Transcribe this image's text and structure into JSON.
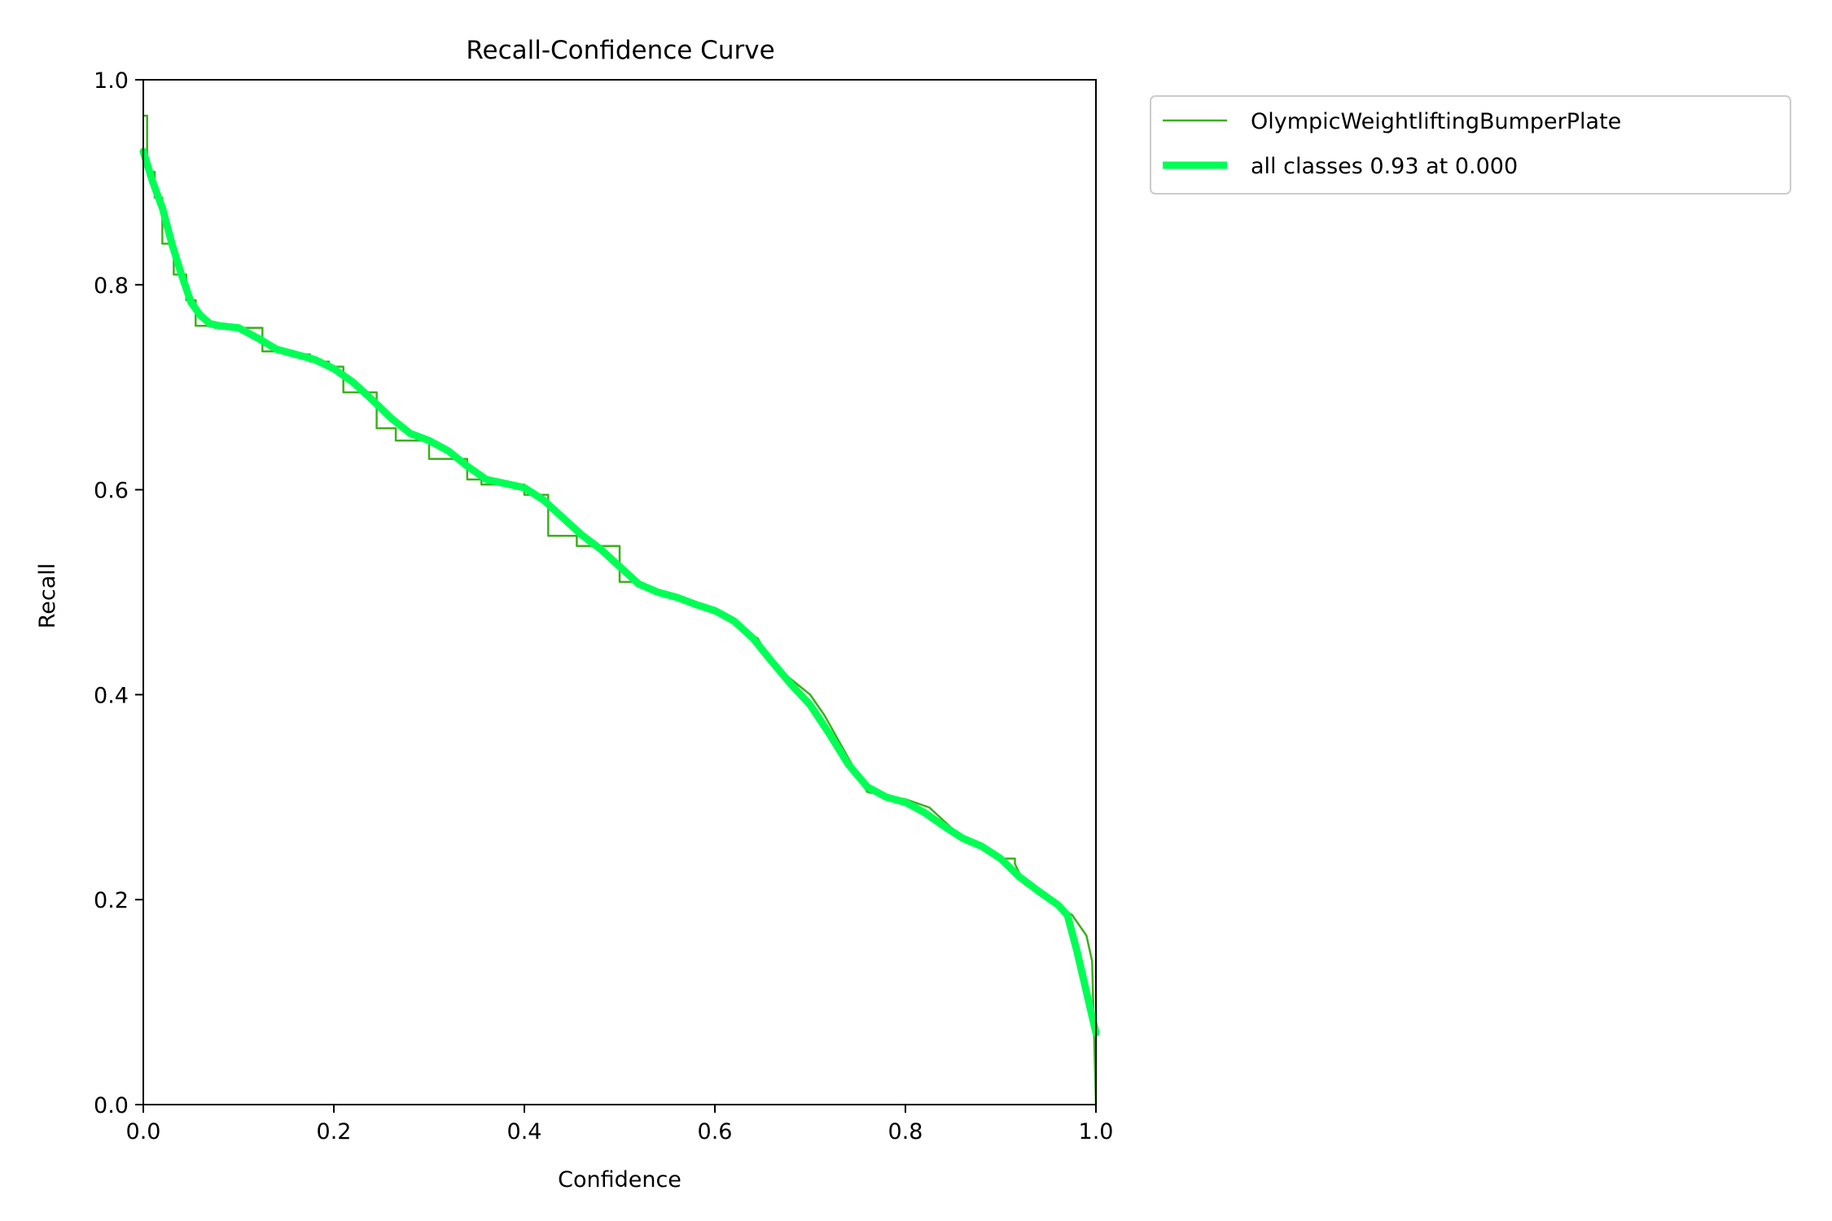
{
  "chart_data": {
    "type": "line",
    "title": "Recall-Confidence Curve",
    "xlabel": "Confidence",
    "ylabel": "Recall",
    "xlim": [
      0,
      1
    ],
    "ylim": [
      0,
      1
    ],
    "xticks": [
      "0.0",
      "0.2",
      "0.4",
      "0.6",
      "0.8",
      "1.0"
    ],
    "yticks": [
      "0.0",
      "0.2",
      "0.4",
      "0.6",
      "0.8",
      "1.0"
    ],
    "grid": false,
    "legend_position": "outside-top-right",
    "series": [
      {
        "name": "OlympicWeightliftingBumperPlate",
        "color": "#3cb01c",
        "style": "thin",
        "x": [
          0.0,
          0.004,
          0.004,
          0.012,
          0.012,
          0.02,
          0.02,
          0.032,
          0.032,
          0.045,
          0.045,
          0.055,
          0.055,
          0.075,
          0.075,
          0.1,
          0.1,
          0.125,
          0.125,
          0.15,
          0.15,
          0.175,
          0.175,
          0.195,
          0.195,
          0.21,
          0.21,
          0.245,
          0.245,
          0.265,
          0.265,
          0.3,
          0.3,
          0.34,
          0.34,
          0.355,
          0.355,
          0.4,
          0.4,
          0.425,
          0.425,
          0.455,
          0.455,
          0.475,
          0.475,
          0.5,
          0.5,
          0.52,
          0.6,
          0.645,
          0.645,
          0.66,
          0.66,
          0.7,
          0.7,
          0.715,
          0.715,
          0.76,
          0.76,
          0.8,
          0.8,
          0.825,
          0.825,
          0.86,
          0.9,
          0.915,
          0.915,
          0.925,
          0.975,
          0.99,
          0.99,
          0.996,
          0.996,
          1.0
        ],
        "y": [
          0.965,
          0.965,
          0.91,
          0.91,
          0.885,
          0.885,
          0.84,
          0.84,
          0.81,
          0.81,
          0.785,
          0.785,
          0.76,
          0.76,
          0.758,
          0.758,
          0.758,
          0.758,
          0.735,
          0.735,
          0.732,
          0.732,
          0.725,
          0.725,
          0.72,
          0.72,
          0.695,
          0.695,
          0.66,
          0.66,
          0.648,
          0.648,
          0.63,
          0.63,
          0.61,
          0.61,
          0.605,
          0.605,
          0.595,
          0.595,
          0.555,
          0.555,
          0.545,
          0.545,
          0.545,
          0.545,
          0.51,
          0.51,
          0.48,
          0.455,
          0.455,
          0.43,
          0.43,
          0.4,
          0.4,
          0.38,
          0.38,
          0.305,
          0.305,
          0.298,
          0.298,
          0.29,
          0.29,
          0.26,
          0.24,
          0.24,
          0.235,
          0.215,
          0.185,
          0.165,
          0.165,
          0.14,
          0.14,
          0.0
        ]
      },
      {
        "name": "all classes 0.93 at 0.000",
        "color": "#00ff55",
        "style": "thick",
        "x": [
          0.0,
          0.005,
          0.01,
          0.02,
          0.03,
          0.04,
          0.05,
          0.06,
          0.07,
          0.08,
          0.1,
          0.12,
          0.14,
          0.16,
          0.18,
          0.2,
          0.22,
          0.24,
          0.26,
          0.28,
          0.3,
          0.32,
          0.34,
          0.36,
          0.38,
          0.4,
          0.42,
          0.44,
          0.46,
          0.48,
          0.5,
          0.52,
          0.54,
          0.56,
          0.58,
          0.6,
          0.62,
          0.64,
          0.66,
          0.68,
          0.7,
          0.72,
          0.74,
          0.76,
          0.78,
          0.8,
          0.82,
          0.84,
          0.86,
          0.88,
          0.9,
          0.92,
          0.94,
          0.96,
          0.97,
          0.98,
          0.99,
          1.0
        ],
        "y": [
          0.93,
          0.915,
          0.9,
          0.875,
          0.84,
          0.81,
          0.783,
          0.77,
          0.762,
          0.76,
          0.758,
          0.748,
          0.737,
          0.732,
          0.727,
          0.718,
          0.705,
          0.688,
          0.67,
          0.655,
          0.648,
          0.638,
          0.623,
          0.61,
          0.606,
          0.602,
          0.59,
          0.573,
          0.556,
          0.542,
          0.525,
          0.508,
          0.5,
          0.495,
          0.488,
          0.482,
          0.472,
          0.455,
          0.432,
          0.41,
          0.39,
          0.362,
          0.332,
          0.31,
          0.3,
          0.295,
          0.285,
          0.272,
          0.26,
          0.252,
          0.24,
          0.222,
          0.208,
          0.195,
          0.185,
          0.15,
          0.11,
          0.07
        ]
      }
    ]
  }
}
